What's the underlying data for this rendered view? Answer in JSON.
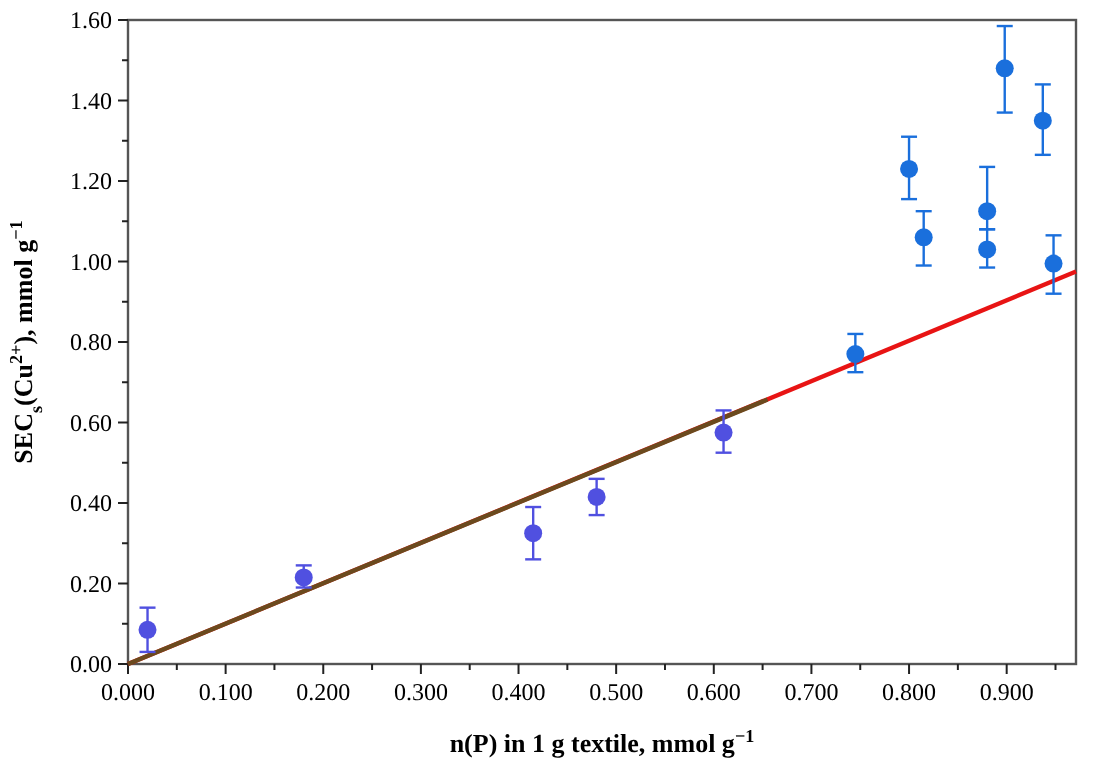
{
  "chart_data": {
    "type": "scatter",
    "xlabel": "n(P) in 1 g textile, mmol g$^{−1}$",
    "ylabel": "SEC$_{s}$(Cu$^{2+}$), mmol g$^{−1}$",
    "xlim": [
      0,
      0.971
    ],
    "ylim": [
      0,
      1.6
    ],
    "xticks": [
      {
        "value": 0,
        "label": "0.000"
      },
      {
        "value": 0.05,
        "label": null
      },
      {
        "value": 0.1,
        "label": "0.100"
      },
      {
        "value": 0.15,
        "label": null
      },
      {
        "value": 0.2,
        "label": "0.200"
      },
      {
        "value": 0.25,
        "label": null
      },
      {
        "value": 0.3,
        "label": "0.300"
      },
      {
        "value": 0.35,
        "label": null
      },
      {
        "value": 0.4,
        "label": "0.400"
      },
      {
        "value": 0.45,
        "label": null
      },
      {
        "value": 0.5,
        "label": "0.500"
      },
      {
        "value": 0.55,
        "label": null
      },
      {
        "value": 0.6,
        "label": "0.600"
      },
      {
        "value": 0.65,
        "label": null
      },
      {
        "value": 0.7,
        "label": "0.700"
      },
      {
        "value": 0.75,
        "label": null
      },
      {
        "value": 0.8,
        "label": "0.800"
      },
      {
        "value": 0.85,
        "label": null
      },
      {
        "value": 0.9,
        "label": "0.900"
      },
      {
        "value": 0.95,
        "label": null
      }
    ],
    "yticks": [
      {
        "value": 0,
        "label": "0.00"
      },
      {
        "value": 0.1,
        "label": null
      },
      {
        "value": 0.2,
        "label": "0.20"
      },
      {
        "value": 0.3,
        "label": null
      },
      {
        "value": 0.4,
        "label": "0.40"
      },
      {
        "value": 0.5,
        "label": null
      },
      {
        "value": 0.6,
        "label": "0.60"
      },
      {
        "value": 0.7,
        "label": null
      },
      {
        "value": 0.8,
        "label": "0.80"
      },
      {
        "value": 0.9,
        "label": null
      },
      {
        "value": 1.0,
        "label": "1.00"
      },
      {
        "value": 1.1,
        "label": null
      },
      {
        "value": 1.2,
        "label": "1.20"
      },
      {
        "value": 1.3,
        "label": null
      },
      {
        "value": 1.4,
        "label": "1.40"
      },
      {
        "value": 1.5,
        "label": null
      },
      {
        "value": 1.6,
        "label": "1.60"
      }
    ],
    "grid": false,
    "series": [
      {
        "type": "line",
        "color": "#e81414",
        "line_style": "solid",
        "x": [
          0,
          0.971
        ],
        "values": [
          0,
          0.975
        ]
      },
      {
        "type": "line",
        "color": "#6b4a1e",
        "line_style": "solid",
        "x": [
          0,
          0.655
        ],
        "values": [
          0,
          0.657
        ]
      },
      {
        "marker": "circle",
        "color": "#5050e0",
        "x": [
          0.02,
          0.18,
          0.415,
          0.48,
          0.61
        ],
        "values": [
          0.085,
          0.215,
          0.325,
          0.415,
          0.575
        ],
        "errors": [
          [
            0.03,
            0.14
          ],
          [
            0.19,
            0.245
          ],
          [
            0.26,
            0.39
          ],
          [
            0.37,
            0.46
          ],
          [
            0.525,
            0.63
          ]
        ]
      },
      {
        "marker": "circle",
        "color": "#1a6fdc",
        "x": [
          0.745,
          0.8,
          0.815,
          0.88,
          0.88,
          0.898,
          0.937,
          0.948
        ],
        "values": [
          0.77,
          1.23,
          1.06,
          1.125,
          1.03,
          1.48,
          1.35,
          0.995
        ],
        "errors": [
          [
            0.725,
            0.82
          ],
          [
            1.155,
            1.31
          ],
          [
            0.99,
            1.125
          ],
          [
            1.08,
            1.235
          ],
          [
            0.985,
            1.08
          ],
          [
            1.37,
            1.585
          ],
          [
            1.265,
            1.44
          ],
          [
            0.92,
            1.065
          ]
        ]
      }
    ]
  }
}
